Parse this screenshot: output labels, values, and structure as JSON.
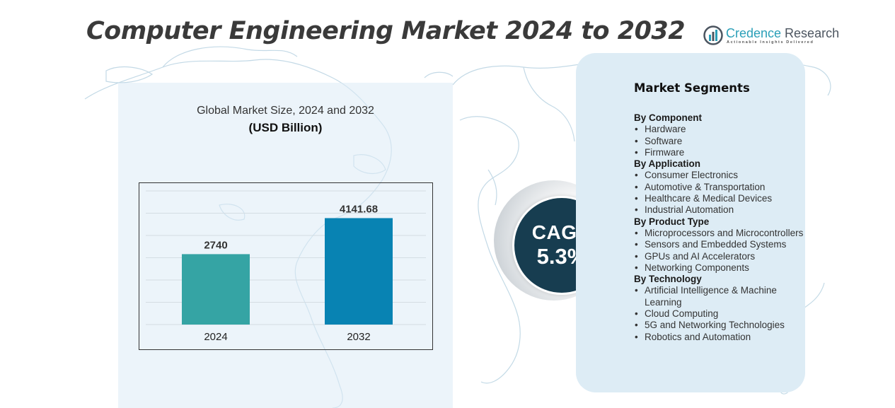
{
  "header": {
    "title": "Computer Engineering Market 2024 to 2032"
  },
  "logo": {
    "name_part1": "Credence",
    "name_part2": " Research",
    "tagline": "Actionable Insights Delivered"
  },
  "chart_panel": {
    "title": "Global Market Size, 2024 and 2032",
    "unit": "(USD Billion)"
  },
  "chart_data": {
    "type": "bar",
    "title": "Global Market Size, 2024 and 2032",
    "subtitle": "(USD Billion)",
    "categories": [
      "2024",
      "2032"
    ],
    "values": [
      2740,
      4141.68
    ],
    "value_labels": [
      "2740",
      "4141.68"
    ],
    "colors": [
      "#35a4a4",
      "#0883b3"
    ],
    "xlabel": "",
    "ylabel": "",
    "ylim": [
      0,
      5200
    ],
    "grid": true,
    "legend": "none"
  },
  "cagr": {
    "label": "CAGR",
    "value": "5.3%"
  },
  "segments": {
    "heading": "Market Segments",
    "groups": [
      {
        "title": "By Component",
        "items": [
          "Hardware",
          "Software",
          "Firmware"
        ]
      },
      {
        "title": "By Application",
        "items": [
          "Consumer Electronics",
          "Automotive & Transportation",
          "Healthcare & Medical Devices",
          "Industrial Automation"
        ]
      },
      {
        "title": "By Product Type",
        "items": [
          "Microprocessors and Microcontrollers",
          "Sensors and Embedded Systems",
          "GPUs and AI Accelerators",
          "Networking Components"
        ]
      },
      {
        "title": "By Technology",
        "items": [
          "Artificial Intelligence & Machine Learning",
          "Cloud Computing",
          "5G and Networking Technologies",
          "Robotics and Automation"
        ]
      }
    ]
  }
}
